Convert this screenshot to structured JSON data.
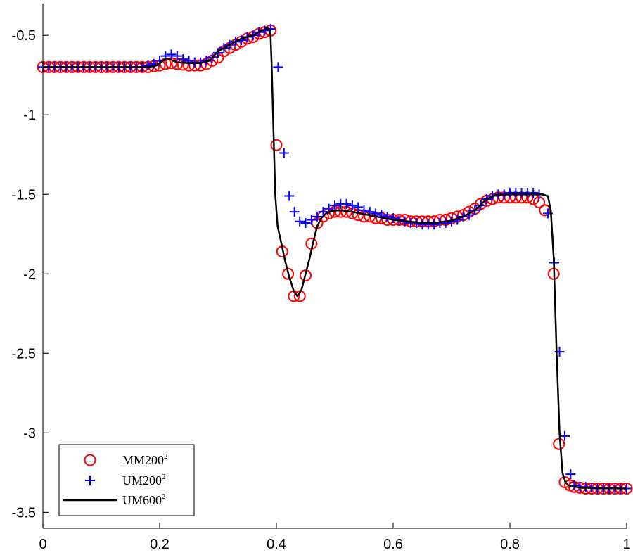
{
  "chart_data": {
    "type": "line",
    "title": "",
    "xlabel": "",
    "ylabel": "",
    "xlim": [
      0,
      1
    ],
    "ylim": [
      -3.6,
      -0.3
    ],
    "xticks": [
      0,
      0.2,
      0.4,
      0.6,
      0.8,
      1
    ],
    "xtick_labels": [
      "0",
      "0.2",
      "0.4",
      "0.6",
      "0.8",
      "1"
    ],
    "yticks": [
      -0.5,
      -1,
      -1.5,
      -2,
      -2.5,
      -3,
      -3.5
    ],
    "ytick_labels": [
      "-0.5",
      "-1",
      "-1.5",
      "-2",
      "-2.5",
      "-3",
      "-3.5"
    ],
    "grid": false,
    "legend_position": "bottom-left",
    "series": [
      {
        "name": "MM200",
        "name_superscript": "2",
        "style": "marker-circle",
        "color": "#ff0000",
        "points": [
          [
            0.0,
            -0.7
          ],
          [
            0.01,
            -0.7
          ],
          [
            0.02,
            -0.7
          ],
          [
            0.03,
            -0.7
          ],
          [
            0.04,
            -0.7
          ],
          [
            0.05,
            -0.7
          ],
          [
            0.06,
            -0.7
          ],
          [
            0.07,
            -0.7
          ],
          [
            0.08,
            -0.7
          ],
          [
            0.09,
            -0.7
          ],
          [
            0.1,
            -0.7
          ],
          [
            0.11,
            -0.7
          ],
          [
            0.12,
            -0.7
          ],
          [
            0.13,
            -0.7
          ],
          [
            0.14,
            -0.7
          ],
          [
            0.15,
            -0.7
          ],
          [
            0.16,
            -0.7
          ],
          [
            0.17,
            -0.7
          ],
          [
            0.18,
            -0.7
          ],
          [
            0.19,
            -0.695
          ],
          [
            0.2,
            -0.69
          ],
          [
            0.21,
            -0.68
          ],
          [
            0.22,
            -0.675
          ],
          [
            0.23,
            -0.68
          ],
          [
            0.24,
            -0.685
          ],
          [
            0.25,
            -0.69
          ],
          [
            0.26,
            -0.69
          ],
          [
            0.27,
            -0.69
          ],
          [
            0.28,
            -0.68
          ],
          [
            0.29,
            -0.66
          ],
          [
            0.3,
            -0.64
          ],
          [
            0.31,
            -0.6
          ],
          [
            0.32,
            -0.58
          ],
          [
            0.33,
            -0.56
          ],
          [
            0.34,
            -0.54
          ],
          [
            0.35,
            -0.52
          ],
          [
            0.36,
            -0.51
          ],
          [
            0.37,
            -0.49
          ],
          [
            0.38,
            -0.48
          ],
          [
            0.39,
            -0.47
          ],
          [
            0.4,
            -1.19
          ],
          [
            0.41,
            -1.86
          ],
          [
            0.42,
            -2.0
          ],
          [
            0.43,
            -2.14
          ],
          [
            0.44,
            -2.14
          ],
          [
            0.45,
            -2.01
          ],
          [
            0.46,
            -1.81
          ],
          [
            0.47,
            -1.68
          ],
          [
            0.48,
            -1.64
          ],
          [
            0.49,
            -1.62
          ],
          [
            0.5,
            -1.61
          ],
          [
            0.51,
            -1.61
          ],
          [
            0.52,
            -1.61
          ],
          [
            0.53,
            -1.62
          ],
          [
            0.54,
            -1.63
          ],
          [
            0.55,
            -1.64
          ],
          [
            0.56,
            -1.64
          ],
          [
            0.57,
            -1.65
          ],
          [
            0.58,
            -1.65
          ],
          [
            0.59,
            -1.66
          ],
          [
            0.6,
            -1.66
          ],
          [
            0.61,
            -1.66
          ],
          [
            0.62,
            -1.66
          ],
          [
            0.63,
            -1.67
          ],
          [
            0.64,
            -1.67
          ],
          [
            0.65,
            -1.67
          ],
          [
            0.66,
            -1.67
          ],
          [
            0.67,
            -1.67
          ],
          [
            0.68,
            -1.66
          ],
          [
            0.69,
            -1.66
          ],
          [
            0.7,
            -1.65
          ],
          [
            0.71,
            -1.64
          ],
          [
            0.72,
            -1.63
          ],
          [
            0.73,
            -1.61
          ],
          [
            0.74,
            -1.59
          ],
          [
            0.75,
            -1.56
          ],
          [
            0.76,
            -1.54
          ],
          [
            0.77,
            -1.53
          ],
          [
            0.78,
            -1.52
          ],
          [
            0.79,
            -1.52
          ],
          [
            0.8,
            -1.52
          ],
          [
            0.81,
            -1.52
          ],
          [
            0.82,
            -1.52
          ],
          [
            0.83,
            -1.52
          ],
          [
            0.84,
            -1.53
          ],
          [
            0.85,
            -1.55
          ],
          [
            0.86,
            -1.6
          ],
          [
            0.875,
            -2.0
          ],
          [
            0.884,
            -3.07
          ],
          [
            0.894,
            -3.31
          ],
          [
            0.903,
            -3.33
          ],
          [
            0.91,
            -3.34
          ],
          [
            0.92,
            -3.345
          ],
          [
            0.93,
            -3.35
          ],
          [
            0.94,
            -3.35
          ],
          [
            0.95,
            -3.35
          ],
          [
            0.96,
            -3.35
          ],
          [
            0.97,
            -3.35
          ],
          [
            0.98,
            -3.35
          ],
          [
            0.99,
            -3.35
          ],
          [
            1.0,
            -3.35
          ]
        ]
      },
      {
        "name": "UM200",
        "name_superscript": "2",
        "style": "marker-plus",
        "color": "#0000ff",
        "points": [
          [
            0.0,
            -0.7
          ],
          [
            0.01,
            -0.7
          ],
          [
            0.02,
            -0.7
          ],
          [
            0.03,
            -0.7
          ],
          [
            0.04,
            -0.7
          ],
          [
            0.05,
            -0.7
          ],
          [
            0.06,
            -0.7
          ],
          [
            0.07,
            -0.7
          ],
          [
            0.08,
            -0.7
          ],
          [
            0.09,
            -0.7
          ],
          [
            0.1,
            -0.7
          ],
          [
            0.11,
            -0.7
          ],
          [
            0.12,
            -0.7
          ],
          [
            0.13,
            -0.7
          ],
          [
            0.14,
            -0.7
          ],
          [
            0.15,
            -0.7
          ],
          [
            0.16,
            -0.7
          ],
          [
            0.17,
            -0.7
          ],
          [
            0.18,
            -0.69
          ],
          [
            0.19,
            -0.68
          ],
          [
            0.2,
            -0.66
          ],
          [
            0.21,
            -0.63
          ],
          [
            0.22,
            -0.62
          ],
          [
            0.23,
            -0.63
          ],
          [
            0.24,
            -0.65
          ],
          [
            0.25,
            -0.66
          ],
          [
            0.26,
            -0.67
          ],
          [
            0.27,
            -0.67
          ],
          [
            0.28,
            -0.66
          ],
          [
            0.29,
            -0.64
          ],
          [
            0.3,
            -0.61
          ],
          [
            0.31,
            -0.58
          ],
          [
            0.32,
            -0.56
          ],
          [
            0.33,
            -0.54
          ],
          [
            0.34,
            -0.53
          ],
          [
            0.35,
            -0.51
          ],
          [
            0.36,
            -0.5
          ],
          [
            0.37,
            -0.48
          ],
          [
            0.38,
            -0.47
          ],
          [
            0.39,
            -0.46
          ],
          [
            0.403,
            -0.7
          ],
          [
            0.413,
            -1.24
          ],
          [
            0.422,
            -1.51
          ],
          [
            0.431,
            -1.61
          ],
          [
            0.44,
            -1.67
          ],
          [
            0.45,
            -1.68
          ],
          [
            0.46,
            -1.66
          ],
          [
            0.47,
            -1.64
          ],
          [
            0.48,
            -1.61
          ],
          [
            0.49,
            -1.59
          ],
          [
            0.5,
            -1.57
          ],
          [
            0.51,
            -1.56
          ],
          [
            0.52,
            -1.56
          ],
          [
            0.53,
            -1.57
          ],
          [
            0.54,
            -1.58
          ],
          [
            0.55,
            -1.6
          ],
          [
            0.56,
            -1.61
          ],
          [
            0.57,
            -1.62
          ],
          [
            0.58,
            -1.63
          ],
          [
            0.59,
            -1.64
          ],
          [
            0.6,
            -1.65
          ],
          [
            0.61,
            -1.66
          ],
          [
            0.62,
            -1.67
          ],
          [
            0.63,
            -1.68
          ],
          [
            0.64,
            -1.68
          ],
          [
            0.65,
            -1.69
          ],
          [
            0.66,
            -1.69
          ],
          [
            0.67,
            -1.69
          ],
          [
            0.68,
            -1.68
          ],
          [
            0.69,
            -1.68
          ],
          [
            0.7,
            -1.67
          ],
          [
            0.71,
            -1.66
          ],
          [
            0.72,
            -1.64
          ],
          [
            0.73,
            -1.63
          ],
          [
            0.74,
            -1.6
          ],
          [
            0.75,
            -1.57
          ],
          [
            0.76,
            -1.53
          ],
          [
            0.77,
            -1.51
          ],
          [
            0.78,
            -1.5
          ],
          [
            0.79,
            -1.5
          ],
          [
            0.8,
            -1.49
          ],
          [
            0.81,
            -1.49
          ],
          [
            0.82,
            -1.49
          ],
          [
            0.83,
            -1.49
          ],
          [
            0.84,
            -1.49
          ],
          [
            0.85,
            -1.5
          ],
          [
            0.865,
            -1.62
          ],
          [
            0.876,
            -1.93
          ],
          [
            0.885,
            -2.49
          ],
          [
            0.894,
            -3.02
          ],
          [
            0.904,
            -3.26
          ],
          [
            0.91,
            -3.33
          ],
          [
            0.92,
            -3.34
          ],
          [
            0.93,
            -3.34
          ],
          [
            0.94,
            -3.345
          ],
          [
            0.95,
            -3.35
          ],
          [
            0.96,
            -3.35
          ],
          [
            0.97,
            -3.35
          ],
          [
            0.98,
            -3.35
          ],
          [
            0.99,
            -3.35
          ],
          [
            1.0,
            -3.35
          ]
        ]
      },
      {
        "name": "UM600",
        "name_superscript": "2",
        "style": "line",
        "color": "#000000",
        "points": [
          [
            0.0,
            -0.7
          ],
          [
            0.18,
            -0.7
          ],
          [
            0.195,
            -0.69
          ],
          [
            0.205,
            -0.66
          ],
          [
            0.212,
            -0.645
          ],
          [
            0.22,
            -0.655
          ],
          [
            0.23,
            -0.67
          ],
          [
            0.25,
            -0.675
          ],
          [
            0.27,
            -0.675
          ],
          [
            0.285,
            -0.66
          ],
          [
            0.293,
            -0.63
          ],
          [
            0.3,
            -0.6
          ],
          [
            0.32,
            -0.56
          ],
          [
            0.34,
            -0.52
          ],
          [
            0.36,
            -0.5
          ],
          [
            0.375,
            -0.47
          ],
          [
            0.383,
            -0.455
          ],
          [
            0.388,
            -0.46
          ],
          [
            0.39,
            -0.5
          ],
          [
            0.392,
            -0.7
          ],
          [
            0.395,
            -1.1
          ],
          [
            0.398,
            -1.5
          ],
          [
            0.402,
            -1.7
          ],
          [
            0.408,
            -1.8
          ],
          [
            0.415,
            -1.92
          ],
          [
            0.422,
            -2.02
          ],
          [
            0.43,
            -2.11
          ],
          [
            0.436,
            -2.14
          ],
          [
            0.443,
            -2.1
          ],
          [
            0.45,
            -2.0
          ],
          [
            0.457,
            -1.9
          ],
          [
            0.463,
            -1.8
          ],
          [
            0.47,
            -1.7
          ],
          [
            0.477,
            -1.65
          ],
          [
            0.485,
            -1.62
          ],
          [
            0.495,
            -1.605
          ],
          [
            0.51,
            -1.6
          ],
          [
            0.53,
            -1.61
          ],
          [
            0.55,
            -1.625
          ],
          [
            0.6,
            -1.66
          ],
          [
            0.65,
            -1.68
          ],
          [
            0.67,
            -1.68
          ],
          [
            0.7,
            -1.665
          ],
          [
            0.72,
            -1.64
          ],
          [
            0.74,
            -1.6
          ],
          [
            0.76,
            -1.53
          ],
          [
            0.775,
            -1.505
          ],
          [
            0.8,
            -1.5
          ],
          [
            0.83,
            -1.5
          ],
          [
            0.855,
            -1.5
          ],
          [
            0.865,
            -1.51
          ],
          [
            0.87,
            -1.6
          ],
          [
            0.875,
            -1.9
          ],
          [
            0.88,
            -2.5
          ],
          [
            0.885,
            -3.0
          ],
          [
            0.89,
            -3.25
          ],
          [
            0.895,
            -3.31
          ],
          [
            0.9,
            -3.33
          ],
          [
            0.92,
            -3.345
          ],
          [
            1.0,
            -3.35
          ]
        ]
      }
    ]
  }
}
